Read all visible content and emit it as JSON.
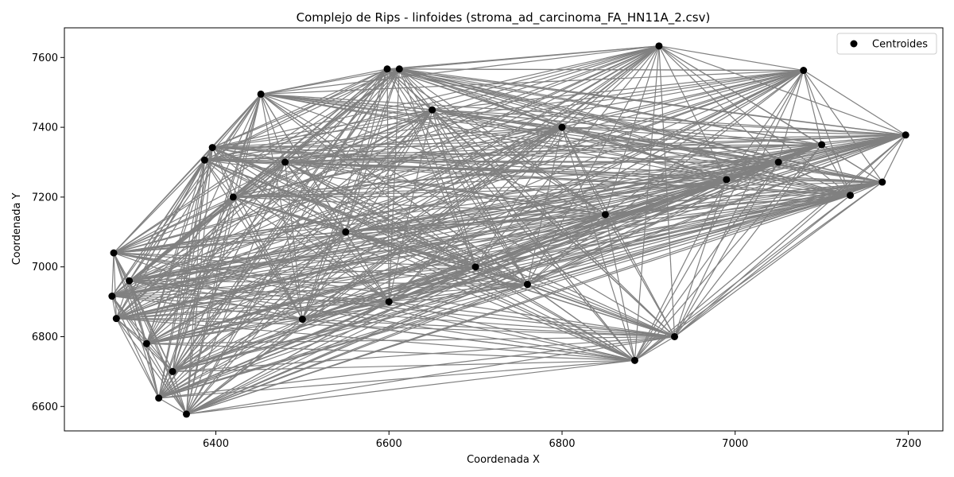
{
  "chart_data": {
    "type": "scatter",
    "title": "Complejo de Rips - linfoides (stroma_ad_carcinoma_FA_HN11A_2.csv)",
    "xlabel": "Coordenada X",
    "ylabel": "Coordenada Y",
    "xlim": [
      6225,
      7240
    ],
    "ylim": [
      6530,
      7685
    ],
    "xticks": [
      "6400",
      "6600",
      "6800",
      "7000",
      "7200"
    ],
    "yticks": [
      "6600",
      "6800",
      "7000",
      "7200",
      "7400",
      "7600"
    ],
    "grid": false,
    "legend": {
      "position": "top-right",
      "entries": [
        "Centroides"
      ]
    },
    "point_color": "#000000",
    "edge_color": "#808080",
    "series": [
      {
        "name": "Centroides",
        "x": [
          6282,
          6280,
          6285,
          6334,
          6366,
          6452,
          6598,
          6612,
          6396,
          6387,
          6912,
          7079,
          7197,
          7170,
          7133,
          6884,
          6930,
          6300,
          6320,
          6350,
          6420,
          6480,
          6550,
          6700,
          6760,
          6850,
          6990,
          7050,
          7100,
          6650,
          6800,
          6500,
          6600
        ],
        "y": [
          7040,
          6916,
          6852,
          6624,
          6578,
          7495,
          7567,
          7567,
          7342,
          7306,
          7633,
          7563,
          7378,
          7243,
          7205,
          6732,
          6800,
          6960,
          6780,
          6700,
          7200,
          7300,
          7100,
          7000,
          6950,
          7150,
          7250,
          7300,
          7350,
          7450,
          7400,
          6850,
          6900
        ]
      }
    ]
  }
}
